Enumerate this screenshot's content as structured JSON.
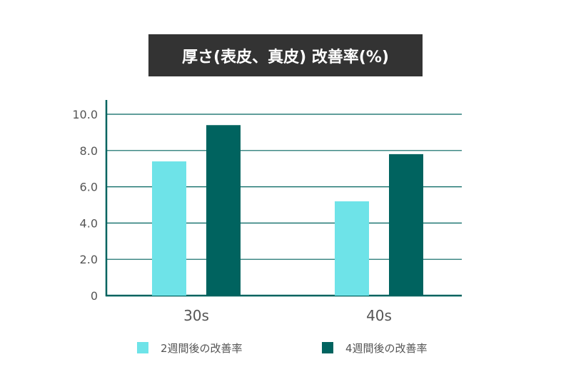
{
  "chart_data": {
    "type": "bar",
    "title": "厚さ(表皮、真皮) 改善率(%)",
    "categories": [
      "30s",
      "40s"
    ],
    "series": [
      {
        "name": "2週間後の改善率",
        "values": [
          7.4,
          5.2
        ],
        "color": "#6ee3e8"
      },
      {
        "name": "4週間後の改善率",
        "values": [
          9.4,
          7.8
        ],
        "color": "#00635f"
      }
    ],
    "ylim": [
      0,
      10
    ],
    "yticks": [
      "0",
      "2.0",
      "4.0",
      "6.0",
      "8.0",
      "10.0"
    ],
    "ytick_values": [
      0,
      2,
      4,
      6,
      8,
      10
    ],
    "grid": true,
    "axis_color": "#00635f",
    "legend_position": "bottom"
  }
}
